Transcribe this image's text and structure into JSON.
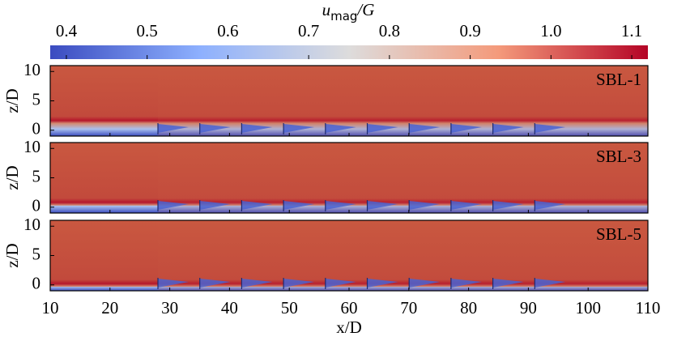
{
  "chart_data": {
    "type": "heatmap",
    "colorbar": {
      "label": "u",
      "label_sub": "mag",
      "label_tail": "/G",
      "clim": [
        0.38,
        1.12
      ],
      "ticks": [
        0.4,
        0.5,
        0.6,
        0.7,
        0.8,
        0.9,
        {
          "value": 1,
          "label": "1.0"
        },
        1.1
      ]
    },
    "xlabel": "x/D",
    "ylabel": "z/D",
    "xlim": [
      10,
      110
    ],
    "xticks": [
      10,
      20,
      30,
      40,
      50,
      60,
      70,
      80,
      90,
      100,
      110
    ],
    "panels": [
      {
        "label": "SBL-1",
        "ylim": [
          -1,
          11
        ],
        "yticks": [
          0,
          5,
          10
        ]
      },
      {
        "label": "SBL-3",
        "ylim": [
          -1,
          11
        ],
        "yticks": [
          0,
          5,
          10
        ]
      },
      {
        "label": "SBL-5",
        "ylim": [
          -1,
          11
        ],
        "yticks": [
          0,
          5,
          10
        ]
      }
    ]
  }
}
